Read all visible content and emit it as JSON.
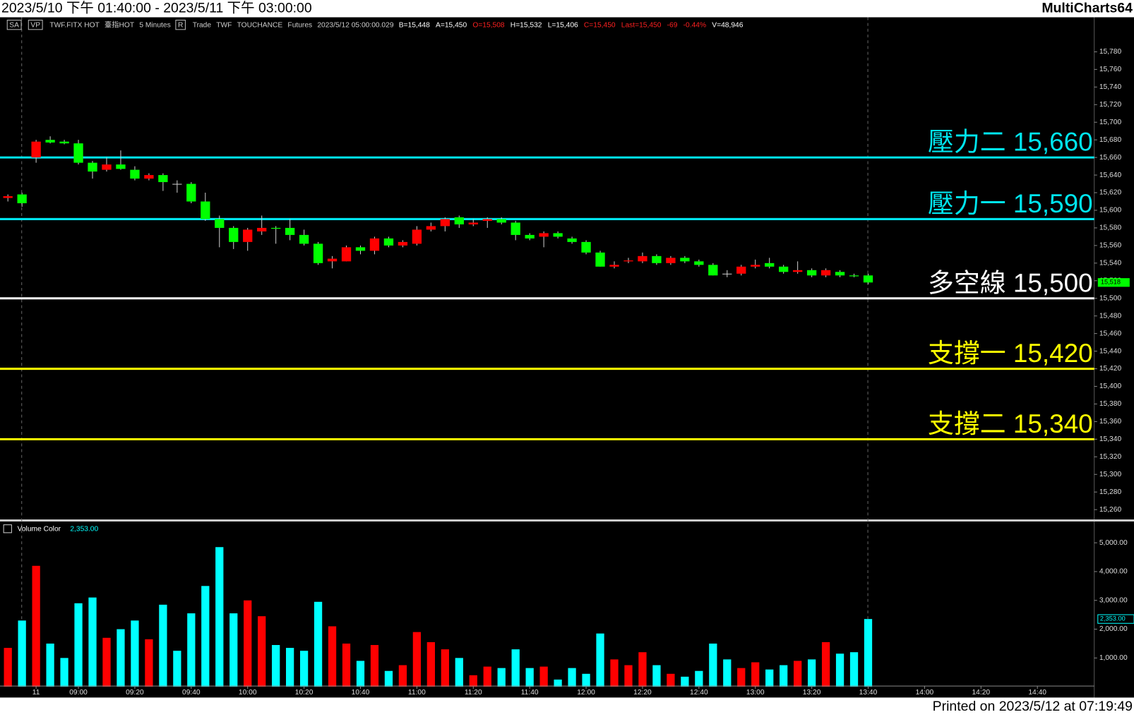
{
  "header": {
    "title": "2023/5/10 下午 01:40:00 - 2023/5/11 下午 03:00:00",
    "app": "MultiCharts64",
    "toolbar": [
      {
        "text": "SA",
        "box": true
      },
      {
        "text": "VP",
        "box": true
      },
      {
        "text": "TWF.FITX HOT"
      },
      {
        "text": "臺指HOT"
      },
      {
        "text": "5 Minutes"
      },
      {
        "text": "R",
        "box": true
      },
      {
        "text": "Trade"
      },
      {
        "text": "TWF"
      },
      {
        "text": "TOUCHANCE"
      },
      {
        "text": "Futures"
      },
      {
        "text": "2023/5/12 05:00:00.029"
      }
    ],
    "quotes": [
      {
        "text": "B=15,448",
        "color": "#ffffff"
      },
      {
        "text": "A=15,450",
        "color": "#ffffff"
      },
      {
        "text": "O=15,508",
        "color": "#ff2020"
      },
      {
        "text": "H=15,532",
        "color": "#ffffff"
      },
      {
        "text": "L=15,406",
        "color": "#ffffff"
      },
      {
        "text": "C=15,450",
        "color": "#ff2020"
      },
      {
        "text": "Last=15,450",
        "color": "#ff2020"
      },
      {
        "text": "-69",
        "color": "#ff2020"
      },
      {
        "text": "-0.44%",
        "color": "#ff2020"
      },
      {
        "text": "V=48,946",
        "color": "#ffffff"
      }
    ]
  },
  "chart_data": [
    {
      "type": "candlestick",
      "up_color": "#ff0000",
      "down_color": "#00ff00",
      "xlim": [
        -0.56,
        77.03
      ],
      "ylim": [
        15248.5,
        15818.4
      ],
      "open": [
        15614,
        15618,
        15660,
        15680,
        15678,
        15676,
        15654,
        15646,
        15652,
        15646,
        15636,
        15640,
        15630,
        15630,
        15610,
        15590,
        15580,
        15564,
        15576,
        15580,
        15580,
        15572,
        15562,
        15542,
        15542,
        15558,
        15554,
        15568,
        15560,
        15562,
        15578,
        15582,
        15592,
        15584,
        15588,
        15590,
        15586,
        15572,
        15570,
        15574,
        15568,
        15564,
        15552,
        15536,
        15542,
        15542,
        15548,
        15540,
        15546,
        15542,
        15538,
        15528,
        15528,
        15536,
        15540,
        15536,
        15530,
        15532,
        15526,
        15530,
        15526,
        15526
      ],
      "high": [
        15618,
        15620,
        15680,
        15684,
        15680,
        15680,
        15656,
        15660,
        15668,
        15650,
        15642,
        15642,
        15634,
        15632,
        15620,
        15594,
        15582,
        15580,
        15594,
        15582,
        15590,
        15578,
        15564,
        15548,
        15560,
        15560,
        15570,
        15570,
        15566,
        15582,
        15586,
        15592,
        15594,
        15590,
        15592,
        15592,
        15588,
        15574,
        15576,
        15576,
        15570,
        15566,
        15554,
        15542,
        15546,
        15552,
        15550,
        15548,
        15548,
        15544,
        15540,
        15532,
        15538,
        15544,
        15546,
        15538,
        15542,
        15534,
        15534,
        15532,
        15528,
        15528
      ],
      "low": [
        15610,
        15604,
        15654,
        15676,
        15675,
        15652,
        15636,
        15644,
        15646,
        15634,
        15634,
        15622,
        15620,
        15608,
        15588,
        15558,
        15556,
        15554,
        15572,
        15562,
        15566,
        15560,
        15538,
        15534,
        15542,
        15550,
        15550,
        15558,
        15558,
        15560,
        15576,
        15576,
        15580,
        15582,
        15580,
        15584,
        15566,
        15566,
        15558,
        15568,
        15562,
        15550,
        15536,
        15534,
        15540,
        15540,
        15538,
        15538,
        15540,
        15536,
        15526,
        15524,
        15526,
        15534,
        15534,
        15528,
        15528,
        15524,
        15524,
        15524,
        15524,
        15516
      ],
      "close": [
        15616,
        15608,
        15678,
        15677,
        15676,
        15654,
        15644,
        15652,
        15647,
        15636,
        15640,
        15632,
        15630,
        15610,
        15590,
        15580,
        15564,
        15578,
        15580,
        15579,
        15572,
        15562,
        15540,
        15545,
        15558,
        15554,
        15568,
        15560,
        15564,
        15578,
        15582,
        15590,
        15584,
        15586,
        15590,
        15586,
        15572,
        15568,
        15574,
        15570,
        15564,
        15552,
        15536,
        15538,
        15543,
        15548,
        15540,
        15546,
        15542,
        15538,
        15526,
        15528,
        15536,
        15538,
        15536,
        15530,
        15532,
        15526,
        15532,
        15526,
        15525,
        15518
      ],
      "yticks": [
        {
          "value": 15780,
          "label": "15,780"
        },
        {
          "value": 15760,
          "label": "15,760"
        },
        {
          "value": 15740,
          "label": "15,740"
        },
        {
          "value": 15720,
          "label": "15,720"
        },
        {
          "value": 15700,
          "label": "15,700"
        },
        {
          "value": 15680,
          "label": "15,680"
        },
        {
          "value": 15660,
          "label": "15,660"
        },
        {
          "value": 15640,
          "label": "15,640"
        },
        {
          "value": 15620,
          "label": "15,620"
        },
        {
          "value": 15600,
          "label": "15,600"
        },
        {
          "value": 15580,
          "label": "15,580"
        },
        {
          "value": 15560,
          "label": "15,560"
        },
        {
          "value": 15540,
          "label": "15,540"
        },
        {
          "value": 15520,
          "label": "15,520"
        },
        {
          "value": 15500,
          "label": "15,500"
        },
        {
          "value": 15480,
          "label": "15,480"
        },
        {
          "value": 15460,
          "label": "15,460"
        },
        {
          "value": 15440,
          "label": "15,440"
        },
        {
          "value": 15420,
          "label": "15,420"
        },
        {
          "value": 15400,
          "label": "15,400"
        },
        {
          "value": 15380,
          "label": "15,380"
        },
        {
          "value": 15360,
          "label": "15,360"
        },
        {
          "value": 15340,
          "label": "15,340"
        },
        {
          "value": 15320,
          "label": "15,320"
        },
        {
          "value": 15300,
          "label": "15,300"
        },
        {
          "value": 15280,
          "label": "15,280"
        },
        {
          "value": 15260,
          "label": "15,260"
        }
      ],
      "levels": [
        {
          "name": "壓力二",
          "value": 15660,
          "label": "15,660",
          "color": "#00e5ee"
        },
        {
          "name": "壓力一",
          "value": 15590,
          "label": "15,590",
          "color": "#00e5ee"
        },
        {
          "name": "多空線",
          "value": 15500,
          "label": "15,500",
          "color": "#ffffff"
        },
        {
          "name": "支撐一",
          "value": 15420,
          "label": "15,420",
          "color": "#ffff00"
        },
        {
          "name": "支撐二",
          "value": 15340,
          "label": "15,340",
          "color": "#ffff00"
        }
      ],
      "last_tag": {
        "value": 15518,
        "label": "15,518"
      }
    },
    {
      "type": "volume",
      "title": "Volume Color",
      "current": "2,353.00",
      "up_color": "#ff0000",
      "down_color": "#00ffff",
      "xlim": [
        -0.56,
        77.03
      ],
      "ylim": [
        0,
        5700
      ],
      "values": [
        1350,
        2300,
        4200,
        1500,
        1000,
        2900,
        3100,
        1700,
        2000,
        2300,
        1650,
        2850,
        1250,
        2550,
        3500,
        4850,
        2550,
        3000,
        2450,
        1450,
        1350,
        1250,
        2950,
        2100,
        1500,
        900,
        1450,
        550,
        750,
        1900,
        1550,
        1300,
        1000,
        400,
        700,
        650,
        1300,
        650,
        700,
        250,
        650,
        450,
        1850,
        950,
        750,
        1200,
        750,
        450,
        350,
        550,
        1500,
        950,
        650,
        850,
        600,
        750,
        900,
        950,
        1550,
        1150,
        1200,
        2353
      ],
      "yticks": [
        {
          "value": 5000,
          "label": "5,000.00"
        },
        {
          "value": 4000,
          "label": "4,000.00"
        },
        {
          "value": 3000,
          "label": "3,000.00"
        },
        {
          "value": 2000,
          "label": "2,000.00"
        },
        {
          "value": 1000,
          "label": "1,000.00"
        }
      ],
      "xticks": [
        {
          "value": 2,
          "label": "11"
        },
        {
          "value": 5,
          "label": "09:00"
        },
        {
          "value": 9,
          "label": "09:20"
        },
        {
          "value": 13,
          "label": "09:40"
        },
        {
          "value": 17,
          "label": "10:00"
        },
        {
          "value": 21,
          "label": "10:20"
        },
        {
          "value": 25,
          "label": "10:40"
        },
        {
          "value": 29,
          "label": "11:00"
        },
        {
          "value": 33,
          "label": "11:20"
        },
        {
          "value": 37,
          "label": "11:40"
        },
        {
          "value": 41,
          "label": "12:00"
        },
        {
          "value": 45,
          "label": "12:20"
        },
        {
          "value": 49,
          "label": "12:40"
        },
        {
          "value": 53,
          "label": "13:00"
        },
        {
          "value": 57,
          "label": "13:20"
        },
        {
          "value": 61,
          "label": "13:40"
        },
        {
          "value": 65,
          "label": "14:00"
        },
        {
          "value": 69,
          "label": "14:20"
        },
        {
          "value": 73,
          "label": "14:40"
        }
      ],
      "last_tag": {
        "value": 2353,
        "label": "2,353.00"
      }
    }
  ],
  "footer": "Printed on 2023/5/12 at 07:19:49"
}
